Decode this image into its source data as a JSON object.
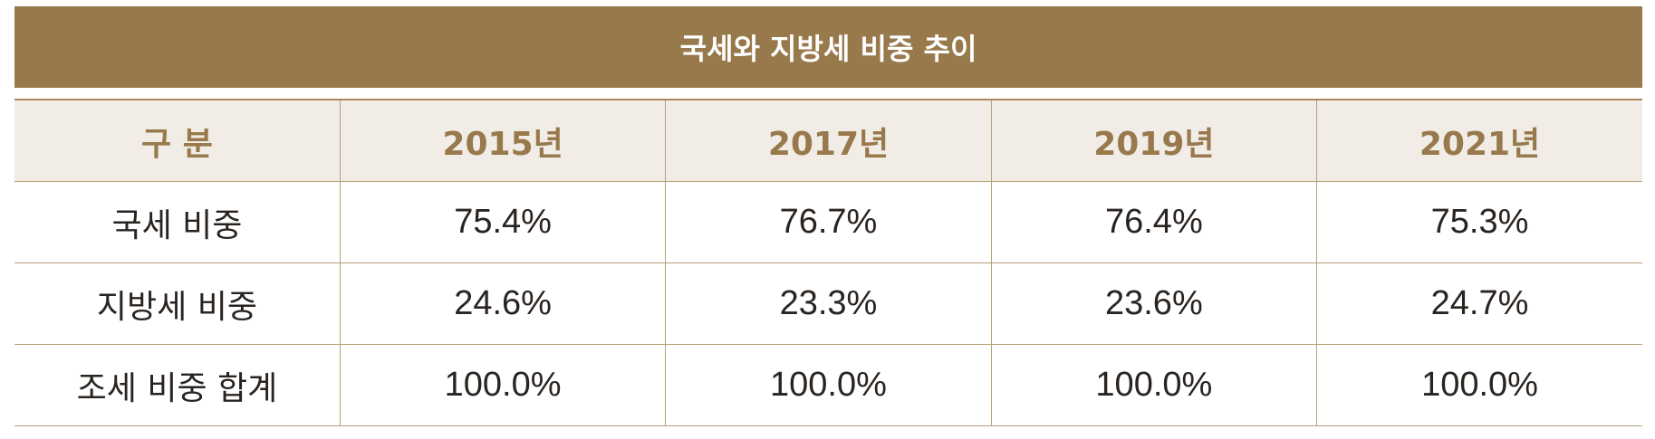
{
  "title": "국세와 지방세 비중 추이",
  "colors": {
    "title_bg": "#97794c",
    "header_bg": "#f1ece6",
    "header_text": "#97794c",
    "border": "#b8a07a",
    "body_text": "#2a2420"
  },
  "table": {
    "headers": [
      "구 분",
      "2015년",
      "2017년",
      "2019년",
      "2021년"
    ],
    "rows": [
      {
        "label": "국세 비중",
        "values": [
          "75.4%",
          "76.7%",
          "76.4%",
          "75.3%"
        ]
      },
      {
        "label": "지방세 비중",
        "values": [
          "24.6%",
          "23.3%",
          "23.6%",
          "24.7%"
        ]
      },
      {
        "label": "조세 비중 합계",
        "values": [
          "100.0%",
          "100.0%",
          "100.0%",
          "100.0%"
        ]
      }
    ]
  },
  "chart_data": {
    "type": "table",
    "title": "국세와 지방세 비중 추이",
    "categories": [
      "2015년",
      "2017년",
      "2019년",
      "2021년"
    ],
    "series": [
      {
        "name": "국세 비중",
        "values": [
          75.4,
          76.7,
          76.4,
          75.3
        ]
      },
      {
        "name": "지방세 비중",
        "values": [
          24.6,
          23.3,
          23.6,
          24.7
        ]
      },
      {
        "name": "조세 비중 합계",
        "values": [
          100.0,
          100.0,
          100.0,
          100.0
        ]
      }
    ],
    "unit": "%"
  }
}
